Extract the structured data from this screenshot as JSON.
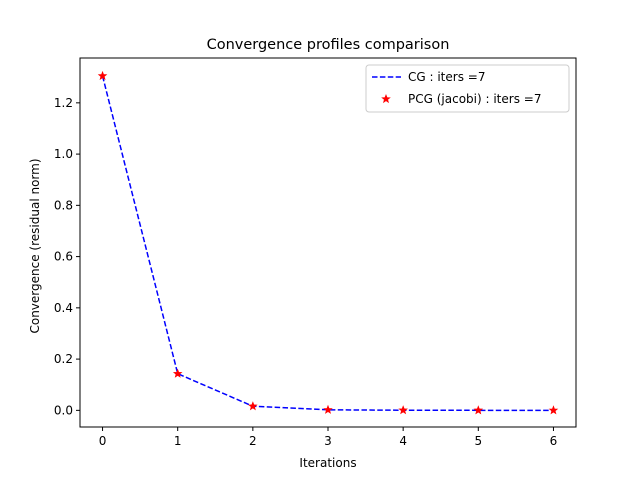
{
  "chart_data": {
    "type": "line",
    "title": "Convergence profiles comparison",
    "xlabel": "Iterations",
    "ylabel": "Convergence (residual norm)",
    "xlim": [
      -0.3,
      6.3
    ],
    "ylim": [
      -0.065,
      1.375
    ],
    "x_ticks": [
      0,
      1,
      2,
      3,
      4,
      5,
      6
    ],
    "x_tick_labels": [
      "0",
      "1",
      "2",
      "3",
      "4",
      "5",
      "6"
    ],
    "y_ticks": [
      0.0,
      0.2,
      0.4,
      0.6,
      0.8,
      1.0,
      1.2
    ],
    "y_tick_labels": [
      "0.0",
      "0.2",
      "0.4",
      "0.6",
      "0.8",
      "1.0",
      "1.2"
    ],
    "grid": false,
    "legend_position": "top-right",
    "x": [
      0,
      1,
      2,
      3,
      4,
      5,
      6
    ],
    "series": [
      {
        "name": "CG : iters =7",
        "style": "dashed-line",
        "color": "#0000ff",
        "values": [
          1.305,
          0.143,
          0.016,
          0.002,
          0.0005,
          0.0001,
          0.0
        ]
      },
      {
        "name": "PCG (jacobi) : iters =7",
        "style": "star-markers",
        "color": "#ff0000",
        "values": [
          1.305,
          0.143,
          0.016,
          0.002,
          0.0005,
          0.0001,
          0.0
        ]
      }
    ]
  }
}
